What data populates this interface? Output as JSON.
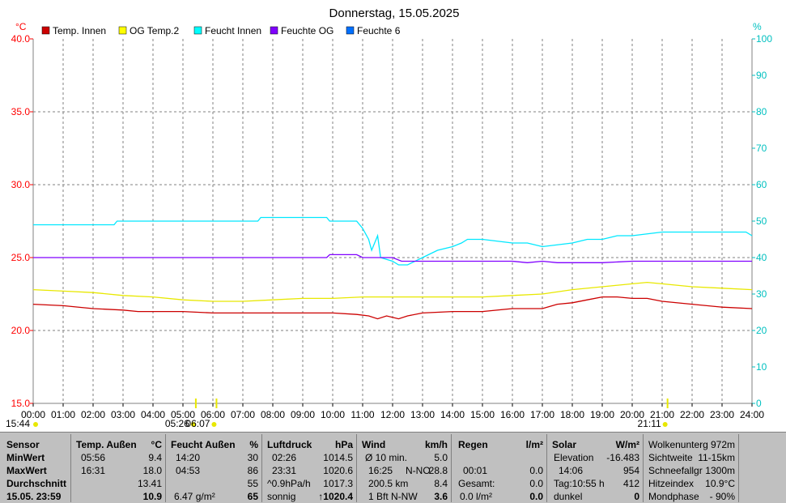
{
  "title": "Donnerstag, 15.05.2025",
  "chart_data": {
    "type": "line",
    "left_axis": {
      "unit": "°C",
      "ylim": [
        15,
        40
      ],
      "ticks": [
        "15.0",
        "20.0",
        "25.0",
        "30.0",
        "35.0",
        "40.0"
      ],
      "color": "#ff0000"
    },
    "right_axis": {
      "unit": "%",
      "ylim": [
        0,
        100
      ],
      "ticks": [
        "0",
        "10",
        "20",
        "30",
        "40",
        "50",
        "60",
        "70",
        "80",
        "90",
        "100"
      ],
      "color": "#00c0c0"
    },
    "x_ticks": [
      "00:00",
      "01:00",
      "02:00",
      "03:00",
      "04:00",
      "05:00",
      "06:00",
      "07:00",
      "08:00",
      "09:00",
      "10:00",
      "11:00",
      "12:00",
      "13:00",
      "14:00",
      "15:00",
      "16:00",
      "17:00",
      "18:00",
      "19:00",
      "20:00",
      "21:00",
      "22:00",
      "23:00",
      "24:00"
    ],
    "grid": true,
    "legend": [
      {
        "name": "Temp. Innen",
        "color": "#cc0000"
      },
      {
        "name": "OG Temp.2",
        "color": "#ffff00"
      },
      {
        "name": "Feucht Innen",
        "color": "#00ffff"
      },
      {
        "name": "Feuchte OG",
        "color": "#8000ff"
      },
      {
        "name": "Feuchte 6",
        "color": "#0070ff"
      }
    ],
    "series": [
      {
        "name": "Temp. Innen",
        "axis": "left",
        "color": "#cc0000",
        "x": [
          0,
          1,
          2,
          3,
          3.5,
          4,
          5,
          6,
          7,
          8,
          9,
          10,
          10.8,
          11.2,
          11.5,
          11.8,
          12.2,
          12.5,
          13,
          14,
          15,
          16,
          17,
          17.5,
          18,
          18.5,
          19,
          19.5,
          20,
          20.5,
          21,
          22,
          23,
          24
        ],
        "y": [
          21.8,
          21.7,
          21.5,
          21.4,
          21.3,
          21.3,
          21.3,
          21.2,
          21.2,
          21.2,
          21.2,
          21.2,
          21.1,
          21.0,
          20.8,
          21.0,
          20.8,
          21.0,
          21.2,
          21.3,
          21.3,
          21.5,
          21.5,
          21.8,
          21.9,
          22.1,
          22.3,
          22.3,
          22.2,
          22.2,
          22.0,
          21.8,
          21.6,
          21.5
        ]
      },
      {
        "name": "OG Temp.2",
        "axis": "left",
        "color": "#e8e800",
        "x": [
          0,
          1,
          2,
          3,
          4,
          5,
          6,
          7,
          8,
          9,
          10,
          11,
          12,
          13,
          14,
          15,
          16,
          17,
          18,
          19,
          20,
          20.5,
          21,
          22,
          23,
          24
        ],
        "y": [
          22.8,
          22.7,
          22.6,
          22.4,
          22.3,
          22.1,
          22.0,
          22.0,
          22.1,
          22.2,
          22.2,
          22.3,
          22.3,
          22.3,
          22.3,
          22.3,
          22.4,
          22.5,
          22.8,
          23.0,
          23.2,
          23.3,
          23.2,
          23.0,
          22.9,
          22.8
        ]
      },
      {
        "name": "Feucht Innen",
        "axis": "right",
        "color": "#00e8ff",
        "x": [
          0,
          2.7,
          2.8,
          7.5,
          7.6,
          9.8,
          9.9,
          10.8,
          11.0,
          11.2,
          11.3,
          11.5,
          11.6,
          12.0,
          12.2,
          12.5,
          13.0,
          13.5,
          14.0,
          14.3,
          14.5,
          15.0,
          16.0,
          16.5,
          17.0,
          18.0,
          18.5,
          19.0,
          19.5,
          20.0,
          21.0,
          21.5,
          22.0,
          23.0,
          23.8,
          24
        ],
        "y": [
          49,
          49,
          50,
          50,
          51,
          51,
          50,
          50,
          48,
          45,
          42,
          46,
          40,
          39,
          38,
          38,
          40,
          42,
          43,
          44,
          45,
          45,
          44,
          44,
          43,
          44,
          45,
          45,
          46,
          46,
          47,
          47,
          47,
          47,
          47,
          46
        ]
      },
      {
        "name": "Feuchte OG",
        "axis": "right",
        "color": "#8000ff",
        "x": [
          0,
          9.8,
          9.9,
          10.8,
          11.0,
          12.0,
          12.3,
          14.0,
          16.0,
          16.5,
          17.0,
          17.5,
          18.0,
          19.0,
          20.0,
          24
        ],
        "y": [
          40,
          40,
          40.8,
          40.8,
          40,
          40,
          39,
          39,
          39,
          38.6,
          39,
          38.6,
          38.6,
          38.6,
          39,
          39
        ]
      },
      {
        "name": "Feuchte 6",
        "axis": "right",
        "color": "#0070ff",
        "x": [],
        "y": []
      }
    ],
    "below_axis_markers": [
      {
        "label": "15:44",
        "x": 0
      },
      {
        "label": "05:26",
        "x": 5.43
      },
      {
        "label": "06:07",
        "x": 6.12
      },
      {
        "label": "21:11",
        "x": 21.18
      }
    ]
  },
  "panel": {
    "sensor": {
      "header": "Sensor",
      "rows": [
        "MinWert",
        "MaxWert",
        "Durchschnitt",
        "15.05. 23:59"
      ]
    },
    "temp": {
      "header": "Temp. Außen",
      "unit": "°C",
      "min_time": "05:56",
      "min_val": "9.4",
      "max_time": "16:31",
      "max_val": "18.0",
      "avg": "13.41",
      "current": "10.9"
    },
    "feucht": {
      "header": "Feucht Außen",
      "unit": "%",
      "min_time": "14:20",
      "min_val": "30",
      "max_time": "04:53",
      "max_val": "86",
      "avg": "55",
      "current_abs": "6.47 g/m²",
      "current": "65"
    },
    "luft": {
      "header": "Luftdruck",
      "unit": "hPa",
      "min_time": "02:26",
      "min_val": "1014.5",
      "max_time": "23:31",
      "max_val": "1020.6",
      "trend_label": "^0.9hPa/h",
      "trend_val": "1017.3",
      "weather": "sonnig",
      "current": "↑1020.4"
    },
    "wind": {
      "header": "Wind",
      "unit": "km/h",
      "avg_label": "Ø 10 min.",
      "avg_val": "5.0",
      "max_time": "16:25",
      "max_dir": "N-NO",
      "max_val": "28.8",
      "dist_label": "200.5 km",
      "dist_val": "8.4",
      "current_label": "1 Bft N-NW",
      "current": "3.6"
    },
    "regen": {
      "header": "Regen",
      "unit": "l/m²",
      "r1_time": "00:01",
      "r1_val": "0.0",
      "r2_label": "Gesamt:",
      "r2_val": "0.0",
      "r3_label": "0.0 l/m²",
      "current": "0.0"
    },
    "solar": {
      "header": "Solar",
      "unit": "W/m²",
      "r1_label": "Elevation",
      "r1_val": "-16.483",
      "r2_label": "14:06",
      "r2_val": "954",
      "r3_label": "Tag:10:55 h",
      "r3_val": "412",
      "r4_label": "dunkel",
      "r4_val": "0"
    },
    "extra": {
      "r1_label": "Wolkenunterg",
      "r1_val": "972m",
      "r2_label": "Sichtweite",
      "r2_val": "11-15km",
      "r3_label": "Schneefallgr",
      "r3_val": "1300m",
      "r4_label": "Hitzeindex",
      "r4_val": "10.9°C",
      "r5_label": "Mondphase",
      "r5_val": "- 90%"
    }
  }
}
